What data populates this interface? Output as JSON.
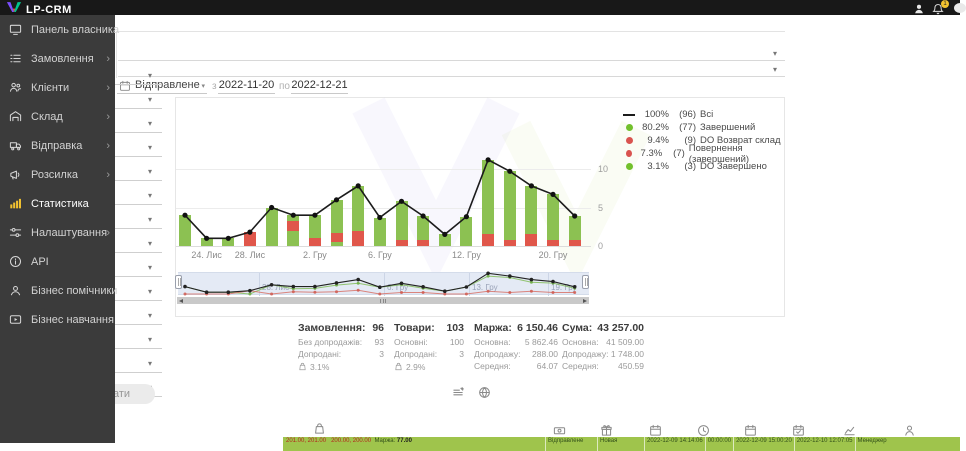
{
  "topbar": {
    "logo_text": "LP-CRM",
    "bell_badge": "1"
  },
  "sidebar": {
    "items": [
      {
        "label": "Панель власника",
        "icon": "dashboard-icon",
        "chevron": false,
        "active": false
      },
      {
        "label": "Замовлення",
        "icon": "orders-icon",
        "chevron": true,
        "active": false
      },
      {
        "label": "Клієнти",
        "icon": "clients-icon",
        "chevron": true,
        "active": false
      },
      {
        "label": "Склад",
        "icon": "warehouse-icon",
        "chevron": true,
        "active": false
      },
      {
        "label": "Відправка",
        "icon": "shipping-icon",
        "chevron": true,
        "active": false
      },
      {
        "label": "Розсилка",
        "icon": "broadcast-icon",
        "chevron": true,
        "active": false
      },
      {
        "label": "Статистика",
        "icon": "stats-icon",
        "chevron": false,
        "active": true
      },
      {
        "label": "Налаштування",
        "icon": "settings-icon",
        "chevron": true,
        "active": false
      },
      {
        "label": "API",
        "icon": "api-icon",
        "chevron": false,
        "active": false
      },
      {
        "label": "Бізнес помічники",
        "icon": "helpers-icon",
        "chevron": false,
        "active": false
      },
      {
        "label": "Бізнес навчання",
        "icon": "training-icon",
        "chevron": false,
        "active": false
      }
    ]
  },
  "filters": {
    "top_selects": [
      "",
      ""
    ],
    "left_selects": [
      "",
      "",
      "",
      "",
      "",
      "",
      "",
      "",
      "",
      "",
      "",
      "",
      "",
      ""
    ],
    "search_button_visible_text": "ати"
  },
  "daterange": {
    "calendar_field_label": "Відправлене",
    "from_prefix": "з",
    "from": "2022-11-20",
    "to_prefix": "по",
    "to": "2022-12-21"
  },
  "chart_data": {
    "type": "bar",
    "stacked": true,
    "overlay_line": "totals",
    "title": "",
    "xlabel": "",
    "ylabel": "",
    "y_ticks": [
      0,
      5,
      10
    ],
    "ylim": [
      0,
      11.5
    ],
    "grid": true,
    "legend_position": "top-right",
    "x_tick_labels": [
      {
        "text": "24. Лис",
        "bar": 1
      },
      {
        "text": "28. Лис",
        "bar": 3
      },
      {
        "text": "2. Гру",
        "bar": 6
      },
      {
        "text": "6. Гру",
        "bar": 9
      },
      {
        "text": "12. Гру",
        "bar": 13
      },
      {
        "text": "20. Гру",
        "bar": 17
      }
    ],
    "bars": [
      {
        "segments": [
          [
            "green",
            4
          ]
        ]
      },
      {
        "segments": [
          [
            "green",
            1
          ]
        ]
      },
      {
        "segments": [
          [
            "green",
            1
          ]
        ]
      },
      {
        "segments": [
          [
            "red",
            1.8
          ]
        ]
      },
      {
        "segments": [
          [
            "green",
            5
          ]
        ]
      },
      {
        "segments": [
          [
            "green",
            2
          ],
          [
            "red",
            1.2
          ],
          [
            "green",
            0.8
          ]
        ]
      },
      {
        "segments": [
          [
            "red",
            1
          ],
          [
            "green",
            3
          ]
        ]
      },
      {
        "segments": [
          [
            "green",
            0.5
          ],
          [
            "red",
            1.2
          ],
          [
            "green",
            4.3
          ]
        ]
      },
      {
        "segments": [
          [
            "red",
            2
          ],
          [
            "green",
            5.8
          ]
        ]
      },
      {
        "segments": [
          [
            "green",
            3.7
          ]
        ]
      },
      {
        "segments": [
          [
            "red",
            0.8
          ],
          [
            "green",
            5
          ]
        ]
      },
      {
        "segments": [
          [
            "red",
            0.8
          ],
          [
            "green",
            3.1
          ]
        ]
      },
      {
        "segments": [
          [
            "green",
            1.5
          ]
        ]
      },
      {
        "segments": [
          [
            "green",
            3.8
          ]
        ]
      },
      {
        "segments": [
          [
            "red",
            1.5
          ],
          [
            "green",
            9.7
          ]
        ]
      },
      {
        "segments": [
          [
            "red",
            0.8
          ],
          [
            "green",
            8.9
          ]
        ]
      },
      {
        "segments": [
          [
            "red",
            1.5
          ],
          [
            "green",
            6.3
          ]
        ]
      },
      {
        "segments": [
          [
            "red",
            0.8
          ],
          [
            "green",
            5.9
          ]
        ]
      },
      {
        "segments": [
          [
            "red",
            0.8
          ],
          [
            "green",
            3.1
          ]
        ]
      }
    ],
    "colors": {
      "green": "#8CC152",
      "red": "#E0574B",
      "line": "#1c1c1c"
    },
    "legend": [
      {
        "marker": "line",
        "color": "#1c1c1c",
        "pct": "100%",
        "count": "(96)",
        "label": "Всі"
      },
      {
        "marker": "dot",
        "color": "#72C02C",
        "pct": "80.2%",
        "count": "(77)",
        "label": "Завершений"
      },
      {
        "marker": "dot",
        "color": "#D9534F",
        "pct": "9.4%",
        "count": "(9)",
        "label": "DO Возврат склад"
      },
      {
        "marker": "dot",
        "color": "#D9534F",
        "pct": "7.3%",
        "count": "(7)",
        "label": "Повернення (завершений)"
      },
      {
        "marker": "dot",
        "color": "#72C02C",
        "pct": "3.1%",
        "count": "(3)",
        "label": "DO Завершено"
      }
    ],
    "navigator": {
      "labels": [
        {
          "text": "28. Лис",
          "x": 83
        },
        {
          "text": "6. Гру",
          "x": 208
        },
        {
          "text": "13. Гру",
          "x": 293
        },
        {
          "text": "19. Гру",
          "x": 372
        }
      ]
    }
  },
  "stats": {
    "columns": [
      {
        "title": "Замовлення:",
        "value": "96",
        "rows": [
          {
            "label": "Без допродажів:",
            "value": "93"
          },
          {
            "label": "Допродані:",
            "value": "3"
          }
        ],
        "upsell_pct": "3.1%"
      },
      {
        "title": "Товари:",
        "value": "103",
        "rows": [
          {
            "label": "Основні:",
            "value": "100"
          },
          {
            "label": "Допродані:",
            "value": "3"
          }
        ],
        "upsell_pct": "2.9%"
      },
      {
        "title": "Маржа:",
        "value": "6 150.46",
        "rows": [
          {
            "label": "Основна:",
            "value": "5 862.46"
          },
          {
            "label": "Допродажу:",
            "value": "288.00"
          },
          {
            "label": "Середня:",
            "value": "64.07"
          }
        ]
      },
      {
        "title": "Сума:",
        "value": "43 257.00",
        "rows": [
          {
            "label": "Основна:",
            "value": "41 509.00"
          },
          {
            "label": "Допродажу:",
            "value": "1 748.00"
          },
          {
            "label": "Середня:",
            "value": "450.59"
          }
        ]
      }
    ]
  },
  "export_icons": [
    "annotation-icon",
    "globe-icon"
  ],
  "table_footer": {
    "icons": [
      "bag-icon",
      "banknote-icon",
      "gift-icon",
      "calendar-icon",
      "clock-icon",
      "calendar-icon",
      "calendar-check-icon",
      "chart-icon",
      "person-icon"
    ]
  },
  "green_row": {
    "left_prices": "201.00, 201.00",
    "left_prices2": "200.00, 200.00",
    "margin_label": "Маржа:",
    "margin_value": "77.00",
    "cells": [
      "Відправлене",
      "Новая",
      "2022-12-09 14:14:06",
      "00:00:00",
      "2022-12-09 15:00:20",
      "2022-12-10 12:07:05",
      "Менеджер"
    ]
  }
}
